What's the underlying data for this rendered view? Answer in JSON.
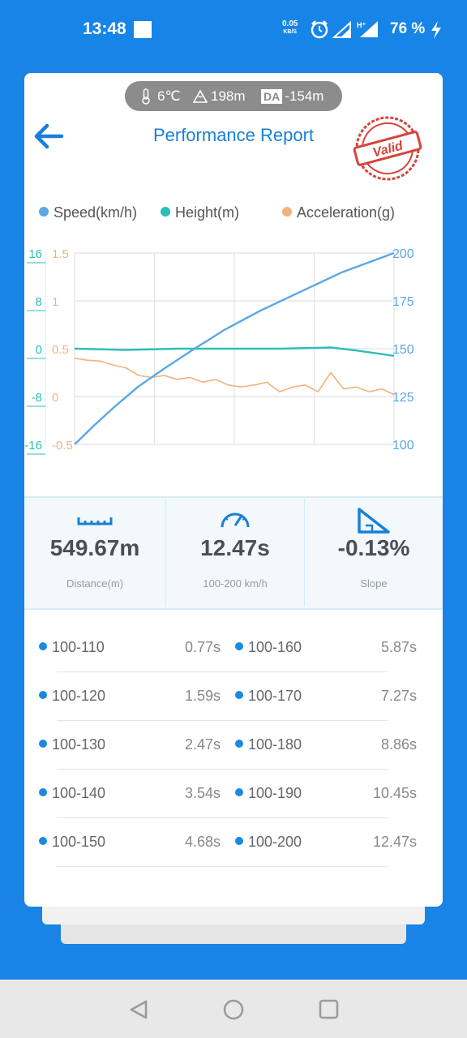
{
  "status_bar": {
    "time": "13:48",
    "net_speed_value": "0.05",
    "net_speed_unit": "KB/S",
    "battery": "76 %"
  },
  "conditions": {
    "temperature": "6℃",
    "altitude": "198m",
    "density_altitude_badge": "DA",
    "density_altitude": "-154m"
  },
  "header": {
    "title": "Performance Report",
    "stamp_text": "Valid"
  },
  "legend": [
    {
      "label": "Speed(km/h)",
      "color": "#5aa7e6"
    },
    {
      "label": "Height(m)",
      "color": "#2bbfb9"
    },
    {
      "label": "Acceleration(g)",
      "color": "#f3b27d"
    }
  ],
  "chart_data": {
    "type": "line",
    "x_range": [
      0,
      12.47
    ],
    "axes": {
      "height_ticks": [
        "16",
        "8",
        "0",
        "-8",
        "-16"
      ],
      "acceleration_ticks": [
        "1.5",
        "1",
        "0.5",
        "0",
        "-0.5"
      ],
      "speed_ticks": [
        "200",
        "175",
        "150",
        "125",
        "100"
      ],
      "speed_range": [
        100,
        200
      ],
      "height_range": [
        -16,
        16
      ],
      "acceleration_range": [
        -0.5,
        1.5
      ]
    },
    "grid": true,
    "series": [
      {
        "name": "Speed(km/h)",
        "x": [
          0,
          0.77,
          1.59,
          2.47,
          3.54,
          4.68,
          5.87,
          7.27,
          8.86,
          10.45,
          12.47
        ],
        "values": [
          100,
          110,
          120,
          130,
          140,
          150,
          160,
          170,
          180,
          190,
          200
        ]
      },
      {
        "name": "Height(m)",
        "x": [
          0,
          2,
          4,
          6,
          8,
          10,
          11,
          12.47
        ],
        "values": [
          0,
          -0.2,
          0,
          0,
          0,
          0.2,
          -0.3,
          -1.2
        ]
      },
      {
        "name": "Acceleration(g)",
        "x": [
          0,
          0.5,
          1,
          1.5,
          2,
          2.5,
          3,
          3.5,
          4,
          4.5,
          5,
          5.5,
          6,
          6.5,
          7,
          7.5,
          8,
          8.5,
          9,
          9.5,
          10,
          10.5,
          11,
          11.5,
          12,
          12.47
        ],
        "values": [
          0.4,
          0.38,
          0.37,
          0.33,
          0.3,
          0.22,
          0.2,
          0.22,
          0.18,
          0.2,
          0.15,
          0.18,
          0.12,
          0.1,
          0.12,
          0.15,
          0.05,
          0.1,
          0.12,
          0.05,
          0.25,
          0.08,
          0.1,
          0.05,
          0.08,
          0.02
        ]
      }
    ]
  },
  "stats": [
    {
      "value": "549.67m",
      "label": "Distance(m)"
    },
    {
      "value": "12.47s",
      "label": "100-200 km/h"
    },
    {
      "value": "-0.13%",
      "label": "Slope"
    }
  ],
  "splits": [
    {
      "range": "100-110",
      "time": "0.77s"
    },
    {
      "range": "100-120",
      "time": "1.59s"
    },
    {
      "range": "100-130",
      "time": "2.47s"
    },
    {
      "range": "100-140",
      "time": "3.54s"
    },
    {
      "range": "100-150",
      "time": "4.68s"
    },
    {
      "range": "100-160",
      "time": "5.87s"
    },
    {
      "range": "100-170",
      "time": "7.27s"
    },
    {
      "range": "100-180",
      "time": "8.86s"
    },
    {
      "range": "100-190",
      "time": "10.45s"
    },
    {
      "range": "100-200",
      "time": "12.47s"
    }
  ]
}
